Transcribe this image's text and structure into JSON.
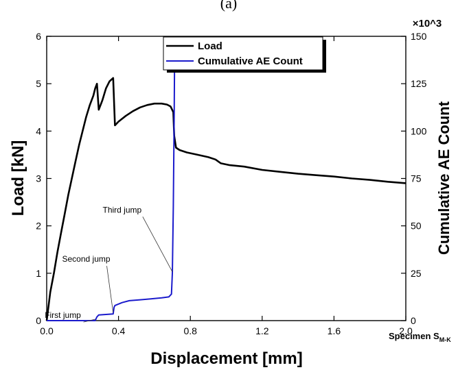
{
  "page_title_partial": "(a)",
  "chart_data": {
    "type": "line",
    "x": {
      "label": "Displacement [mm]",
      "range": [
        0,
        2.0
      ],
      "ticks": [
        0,
        0.4,
        0.8,
        1.2,
        1.6,
        2.0
      ],
      "tick_labels": [
        "0.0",
        "0.4",
        "0.8",
        "1.2",
        "1.6",
        "2.0"
      ]
    },
    "y_left": {
      "label": "Load [kN]",
      "range": [
        0,
        6
      ],
      "ticks": [
        0,
        1,
        2,
        3,
        4,
        5,
        6
      ],
      "tick_labels": [
        "0",
        "1",
        "2",
        "3",
        "4",
        "5",
        "6"
      ]
    },
    "y_right": {
      "label": "Cumulative AE Count",
      "multiplier_label": "×10^3",
      "range": [
        0,
        150
      ],
      "ticks": [
        0,
        25,
        50,
        75,
        100,
        125,
        150
      ],
      "tick_labels": [
        "0",
        "25",
        "50",
        "75",
        "100",
        "125",
        "150"
      ]
    },
    "series": [
      {
        "name": "Load",
        "axis": "left",
        "color": "#000000",
        "points": [
          [
            0.0,
            0.0
          ],
          [
            0.01,
            0.3
          ],
          [
            0.02,
            0.6
          ],
          [
            0.04,
            1.0
          ],
          [
            0.06,
            1.45
          ],
          [
            0.08,
            1.85
          ],
          [
            0.1,
            2.25
          ],
          [
            0.12,
            2.65
          ],
          [
            0.14,
            3.0
          ],
          [
            0.16,
            3.35
          ],
          [
            0.18,
            3.7
          ],
          [
            0.2,
            4.0
          ],
          [
            0.22,
            4.3
          ],
          [
            0.24,
            4.55
          ],
          [
            0.26,
            4.75
          ],
          [
            0.27,
            4.9
          ],
          [
            0.28,
            5.0
          ],
          [
            0.29,
            4.45
          ],
          [
            0.31,
            4.65
          ],
          [
            0.33,
            4.9
          ],
          [
            0.35,
            5.05
          ],
          [
            0.37,
            5.12
          ],
          [
            0.38,
            4.12
          ],
          [
            0.4,
            4.2
          ],
          [
            0.44,
            4.32
          ],
          [
            0.48,
            4.42
          ],
          [
            0.52,
            4.5
          ],
          [
            0.56,
            4.55
          ],
          [
            0.6,
            4.58
          ],
          [
            0.64,
            4.58
          ],
          [
            0.67,
            4.56
          ],
          [
            0.69,
            4.52
          ],
          [
            0.705,
            4.4
          ],
          [
            0.71,
            3.9
          ],
          [
            0.72,
            3.65
          ],
          [
            0.74,
            3.6
          ],
          [
            0.78,
            3.55
          ],
          [
            0.84,
            3.5
          ],
          [
            0.9,
            3.45
          ],
          [
            0.94,
            3.4
          ],
          [
            0.97,
            3.32
          ],
          [
            1.02,
            3.28
          ],
          [
            1.1,
            3.25
          ],
          [
            1.2,
            3.18
          ],
          [
            1.3,
            3.14
          ],
          [
            1.4,
            3.1
          ],
          [
            1.5,
            3.07
          ],
          [
            1.6,
            3.04
          ],
          [
            1.7,
            3.0
          ],
          [
            1.8,
            2.97
          ],
          [
            1.9,
            2.93
          ],
          [
            2.0,
            2.9
          ]
        ]
      },
      {
        "name": "Cumulative AE Count",
        "axis": "right",
        "color": "#1a1acc",
        "points": [
          [
            0.0,
            0.0
          ],
          [
            0.27,
            0.0
          ],
          [
            0.28,
            2.0
          ],
          [
            0.29,
            3.0
          ],
          [
            0.37,
            3.5
          ],
          [
            0.375,
            7.0
          ],
          [
            0.38,
            8.0
          ],
          [
            0.42,
            9.5
          ],
          [
            0.46,
            10.5
          ],
          [
            0.52,
            11.0
          ],
          [
            0.58,
            11.5
          ],
          [
            0.64,
            12.0
          ],
          [
            0.68,
            12.5
          ],
          [
            0.695,
            14.0
          ],
          [
            0.7,
            25.0
          ],
          [
            0.705,
            60.0
          ],
          [
            0.71,
            110.0
          ],
          [
            0.712,
            135.0
          ]
        ]
      }
    ],
    "legend": {
      "placement": "top-center",
      "entries": [
        "Load",
        "Cumulative AE Count"
      ]
    },
    "annotations": [
      {
        "text": "First jump",
        "target": [
          0.27,
          0.0
        ],
        "label_pos": [
          0.09,
          1.4
        ]
      },
      {
        "text": "Second jump",
        "target": [
          0.37,
          3.5
        ],
        "label_pos": [
          0.22,
          31.0
        ]
      },
      {
        "text": "Third jump",
        "target": [
          0.7,
          25.0
        ],
        "label_pos": [
          0.42,
          57.0
        ]
      }
    ],
    "footnote": "Specimen S",
    "footnote_subscript": "M-K",
    "grid": false
  }
}
